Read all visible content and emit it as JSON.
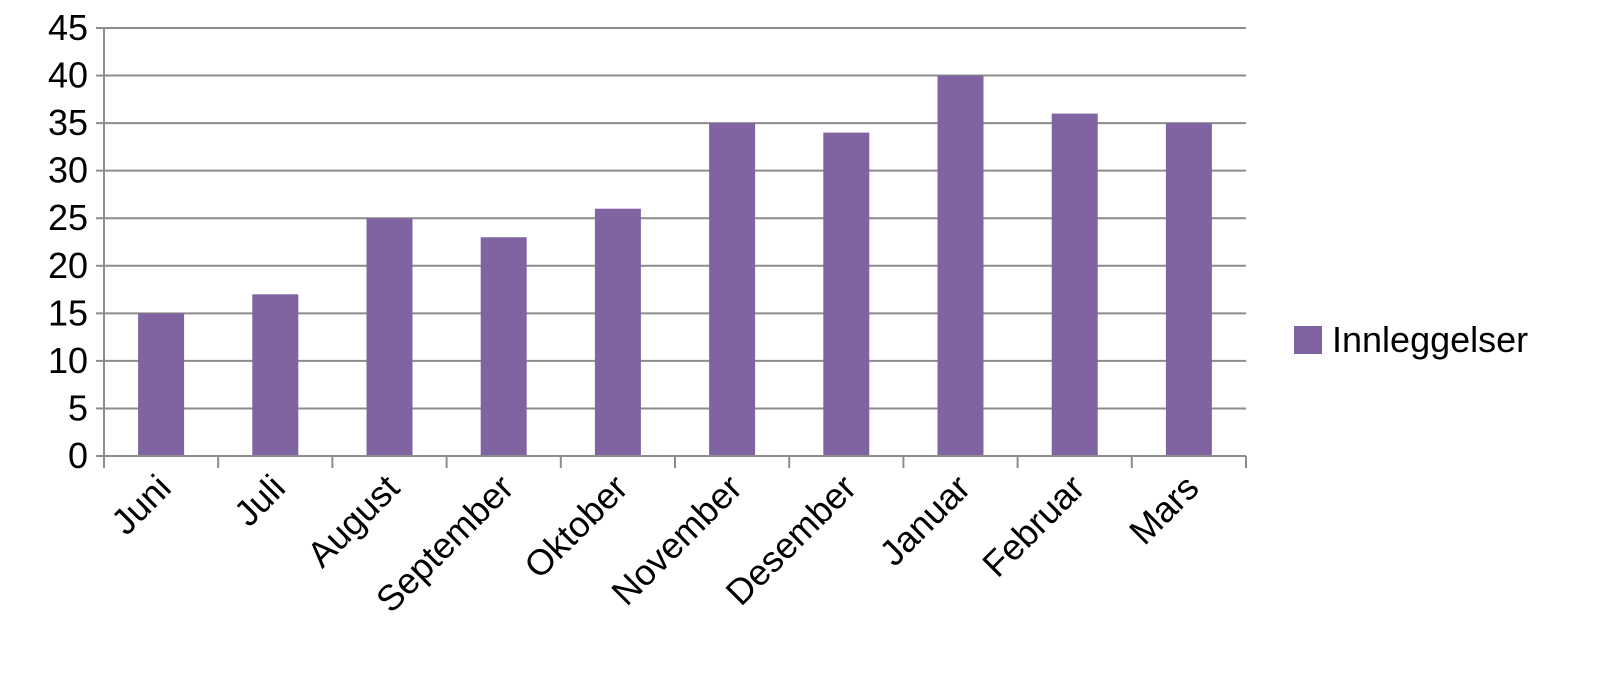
{
  "chart_data": {
    "type": "bar",
    "categories": [
      "Juni",
      "Juli",
      "August",
      "September",
      "Oktober",
      "November",
      "Desember",
      "Januar",
      "Februar",
      "Mars"
    ],
    "series": [
      {
        "name": "Innleggelser",
        "values": [
          15,
          17,
          25,
          23,
          26,
          35,
          34,
          40,
          36,
          35
        ],
        "color": "#8064A2"
      }
    ],
    "ylim": [
      0,
      45
    ],
    "yticks": [
      0,
      5,
      10,
      15,
      20,
      25,
      30,
      35,
      40,
      45
    ],
    "grid": true,
    "legend_position": "right",
    "colors": {
      "gridline": "#8c8c8c",
      "axis": "#8c8c8c",
      "text": "#000000"
    }
  }
}
